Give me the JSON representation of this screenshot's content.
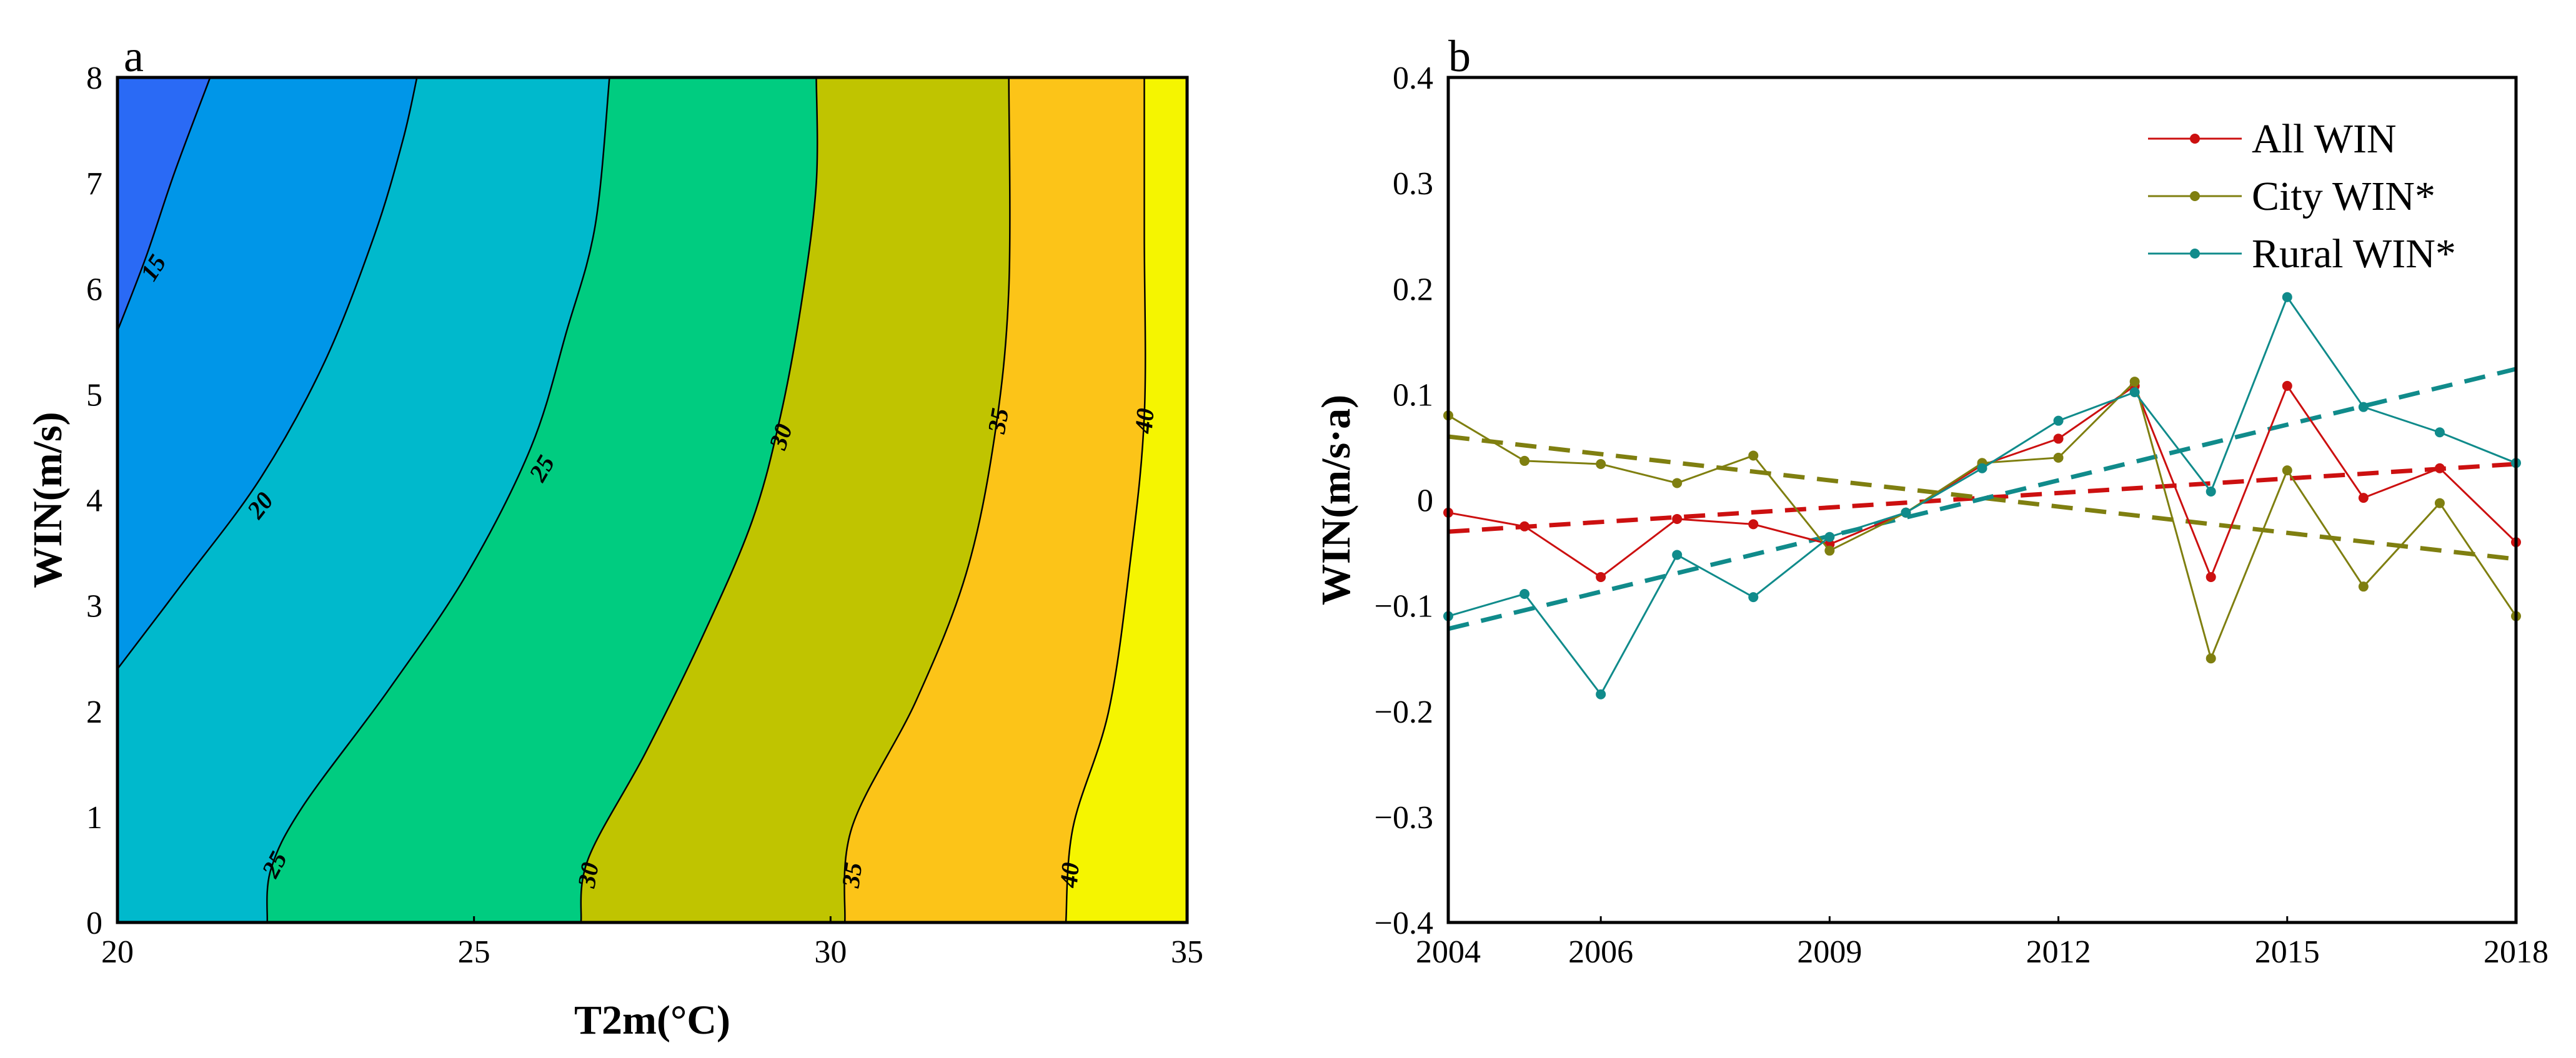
{
  "chart_data": [
    {
      "panel": "a",
      "type": "contour",
      "xlabel": "T2m(°C)",
      "ylabel": "WIN(m/s)",
      "xlim": [
        20,
        35
      ],
      "ylim": [
        0,
        8
      ],
      "xticks": [
        20,
        25,
        30,
        35
      ],
      "yticks": [
        0,
        1,
        2,
        3,
        4,
        5,
        6,
        7,
        8
      ],
      "levels": [
        15,
        20,
        25,
        30,
        35,
        40
      ],
      "level_colors": [
        "#2a6af5",
        "#0096e8",
        "#00b9cc",
        "#00cc80",
        "#c0c400",
        "#fcc418",
        "#f5f500"
      ],
      "contours": [
        {
          "level": 15,
          "points": [
            [
              20,
              5.6
            ],
            [
              20.4,
              6.3
            ],
            [
              20.8,
              7.1
            ],
            [
              21.3,
              8.0
            ]
          ]
        },
        {
          "level": 20,
          "points": [
            [
              20,
              2.4
            ],
            [
              20.9,
              3.2
            ],
            [
              22.0,
              4.2
            ],
            [
              22.9,
              5.3
            ],
            [
              23.6,
              6.5
            ],
            [
              24.0,
              7.4
            ],
            [
              24.2,
              8.0
            ]
          ]
        },
        {
          "level": 25,
          "points": [
            [
              22.1,
              0.0
            ],
            [
              22.15,
              0.5
            ],
            [
              22.6,
              1.1
            ],
            [
              23.8,
              2.2
            ],
            [
              24.9,
              3.3
            ],
            [
              25.8,
              4.5
            ],
            [
              26.3,
              5.6
            ],
            [
              26.7,
              6.6
            ],
            [
              26.9,
              8.0
            ]
          ]
        },
        {
          "level": 30,
          "points": [
            [
              26.5,
              0.0
            ],
            [
              26.6,
              0.6
            ],
            [
              27.4,
              1.6
            ],
            [
              28.2,
              2.7
            ],
            [
              28.9,
              3.8
            ],
            [
              29.3,
              4.8
            ],
            [
              29.6,
              5.9
            ],
            [
              29.8,
              7.0
            ],
            [
              29.8,
              8.0
            ]
          ]
        },
        {
          "level": 35,
          "points": [
            [
              30.2,
              0.0
            ],
            [
              30.3,
              0.9
            ],
            [
              31.2,
              2.1
            ],
            [
              31.9,
              3.3
            ],
            [
              32.3,
              4.6
            ],
            [
              32.5,
              6.0
            ],
            [
              32.5,
              8.0
            ]
          ]
        },
        {
          "level": 40,
          "points": [
            [
              33.3,
              0.0
            ],
            [
              33.4,
              0.9
            ],
            [
              33.9,
              2.0
            ],
            [
              34.2,
              3.4
            ],
            [
              34.4,
              4.8
            ],
            [
              34.4,
              6.5
            ],
            [
              34.4,
              8.0
            ]
          ]
        }
      ],
      "contour_labels": [
        {
          "text": "15",
          "x": 20.5,
          "y": 6.2,
          "angle": -58
        },
        {
          "text": "20",
          "x": 22.0,
          "y": 3.95,
          "angle": -52
        },
        {
          "text": "25",
          "x": 25.95,
          "y": 4.3,
          "angle": -60
        },
        {
          "text": "25",
          "x": 22.2,
          "y": 0.55,
          "angle": -62
        },
        {
          "text": "30",
          "x": 29.3,
          "y": 4.6,
          "angle": -72
        },
        {
          "text": "30",
          "x": 26.6,
          "y": 0.45,
          "angle": -80
        },
        {
          "text": "35",
          "x": 32.35,
          "y": 4.75,
          "angle": -80
        },
        {
          "text": "35",
          "x": 30.3,
          "y": 0.45,
          "angle": -82
        },
        {
          "text": "40",
          "x": 34.4,
          "y": 4.75,
          "angle": -85
        },
        {
          "text": "40",
          "x": 33.35,
          "y": 0.45,
          "angle": -85
        }
      ]
    },
    {
      "panel": "b",
      "type": "line",
      "xlabel": "",
      "ylabel": "WIN(m/s·a)",
      "xlim": [
        2004,
        2018
      ],
      "ylim": [
        -0.4,
        0.4
      ],
      "xticks": [
        2004,
        2006,
        2009,
        2012,
        2015,
        2018
      ],
      "ytick_labels": [
        "0.4",
        "0.3",
        "0.2",
        "0.1",
        "0",
        "−0.1",
        "−0.2",
        "−0.3",
        "−0.4"
      ],
      "yticks": [
        0.4,
        0.3,
        0.2,
        0.1,
        0,
        -0.1,
        -0.2,
        -0.3,
        -0.4
      ],
      "x": [
        2004,
        2005,
        2006,
        2007,
        2008,
        2009,
        2010,
        2011,
        2012,
        2013,
        2014,
        2015,
        2016,
        2017,
        2018
      ],
      "legend": "top-right",
      "series": [
        {
          "name": "All WIN",
          "color": "#cc1010",
          "values": [
            -0.012,
            -0.025,
            -0.073,
            -0.018,
            -0.023,
            -0.042,
            -0.012,
            0.033,
            0.058,
            0.108,
            -0.073,
            0.108,
            0.002,
            0.03,
            -0.04
          ],
          "trend": [
            -0.03,
            0.034
          ]
        },
        {
          "name": "City WIN*",
          "color": "#7f7f10",
          "values": [
            0.08,
            0.037,
            0.034,
            0.016,
            0.042,
            -0.048,
            -0.012,
            0.035,
            0.04,
            0.112,
            -0.15,
            0.028,
            -0.082,
            -0.003,
            -0.11
          ],
          "trend": [
            0.06,
            -0.056
          ]
        },
        {
          "name": "Rural WIN*",
          "color": "#108b8b",
          "values": [
            -0.11,
            -0.089,
            -0.184,
            -0.052,
            -0.092,
            -0.035,
            -0.012,
            0.03,
            0.075,
            0.102,
            0.008,
            0.192,
            0.088,
            0.064,
            0.035
          ],
          "trend": [
            -0.122,
            0.124
          ]
        }
      ]
    }
  ]
}
